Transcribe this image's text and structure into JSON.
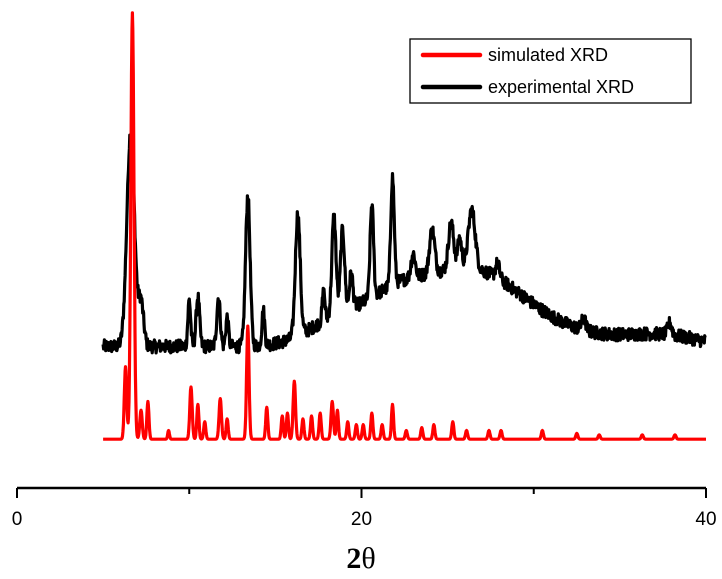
{
  "chart_data": {
    "type": "line",
    "xlabel_main": "2",
    "xlabel_symbol": "θ",
    "ylabel": "",
    "xlim": [
      0,
      40
    ],
    "x_ticks": [
      "0",
      "20",
      "40"
    ],
    "grid": false,
    "legend_position": "top-right",
    "series": [
      {
        "name": "simulated XRD",
        "color": "#ff0000",
        "baseline": 0.2,
        "x_range": [
          5,
          40
        ],
        "peaks": [
          [
            6.3,
            2.5,
            0.07
          ],
          [
            6.7,
            14.7,
            0.09
          ],
          [
            7.2,
            1.0,
            0.07
          ],
          [
            7.6,
            1.3,
            0.06
          ],
          [
            8.8,
            0.3,
            0.05
          ],
          [
            10.1,
            1.8,
            0.07
          ],
          [
            10.5,
            1.2,
            0.06
          ],
          [
            10.9,
            0.6,
            0.06
          ],
          [
            11.8,
            1.4,
            0.07
          ],
          [
            12.2,
            0.7,
            0.06
          ],
          [
            13.4,
            3.9,
            0.07
          ],
          [
            14.5,
            1.1,
            0.06
          ],
          [
            15.4,
            0.8,
            0.06
          ],
          [
            15.7,
            0.9,
            0.06
          ],
          [
            16.1,
            2.0,
            0.07
          ],
          [
            16.6,
            0.7,
            0.06
          ],
          [
            17.1,
            0.8,
            0.06
          ],
          [
            17.6,
            0.9,
            0.06
          ],
          [
            18.3,
            1.3,
            0.07
          ],
          [
            18.6,
            1.0,
            0.06
          ],
          [
            19.2,
            0.6,
            0.06
          ],
          [
            19.7,
            0.5,
            0.06
          ],
          [
            20.1,
            0.5,
            0.06
          ],
          [
            20.6,
            0.9,
            0.06
          ],
          [
            21.2,
            0.5,
            0.06
          ],
          [
            21.8,
            1.2,
            0.06
          ],
          [
            22.6,
            0.3,
            0.06
          ],
          [
            23.5,
            0.4,
            0.06
          ],
          [
            24.2,
            0.5,
            0.06
          ],
          [
            25.3,
            0.6,
            0.06
          ],
          [
            26.1,
            0.3,
            0.06
          ],
          [
            27.4,
            0.3,
            0.06
          ],
          [
            28.1,
            0.3,
            0.06
          ],
          [
            30.5,
            0.3,
            0.06
          ],
          [
            32.5,
            0.2,
            0.06
          ],
          [
            33.8,
            0.15,
            0.06
          ],
          [
            36.3,
            0.15,
            0.06
          ],
          [
            38.2,
            0.15,
            0.06
          ]
        ]
      },
      {
        "name": "experimental XRD",
        "color": "#000000",
        "baseline": 3.4,
        "x_range": [
          5,
          40
        ],
        "broad": [
          [
            26.0,
            2.6,
            3.2
          ],
          [
            18.8,
            0.9,
            1.8
          ],
          [
            22.0,
            0.8,
            1.5
          ],
          [
            32.0,
            0.3,
            4.0
          ],
          [
            37.5,
            0.3,
            2.0
          ]
        ],
        "peaks": [
          [
            6.6,
            7.4,
            0.22
          ],
          [
            7.2,
            1.5,
            0.15
          ],
          [
            10.0,
            1.6,
            0.08
          ],
          [
            10.5,
            1.7,
            0.1
          ],
          [
            11.7,
            1.7,
            0.1
          ],
          [
            12.2,
            1.0,
            0.08
          ],
          [
            13.4,
            5.2,
            0.13
          ],
          [
            14.3,
            1.2,
            0.08
          ],
          [
            16.3,
            4.2,
            0.14
          ],
          [
            17.8,
            1.0,
            0.08
          ],
          [
            18.4,
            3.4,
            0.12
          ],
          [
            18.9,
            2.8,
            0.12
          ],
          [
            19.4,
            1.2,
            0.1
          ],
          [
            20.6,
            3.2,
            0.1
          ],
          [
            21.8,
            3.7,
            0.1
          ],
          [
            23.0,
            0.8,
            0.12
          ],
          [
            24.1,
            1.5,
            0.15
          ],
          [
            25.2,
            1.6,
            0.15
          ],
          [
            25.7,
            1.0,
            0.12
          ],
          [
            26.4,
            2.0,
            0.2
          ],
          [
            27.9,
            0.5,
            0.12
          ],
          [
            32.9,
            0.4,
            0.12
          ],
          [
            37.9,
            0.4,
            0.12
          ]
        ]
      }
    ]
  }
}
